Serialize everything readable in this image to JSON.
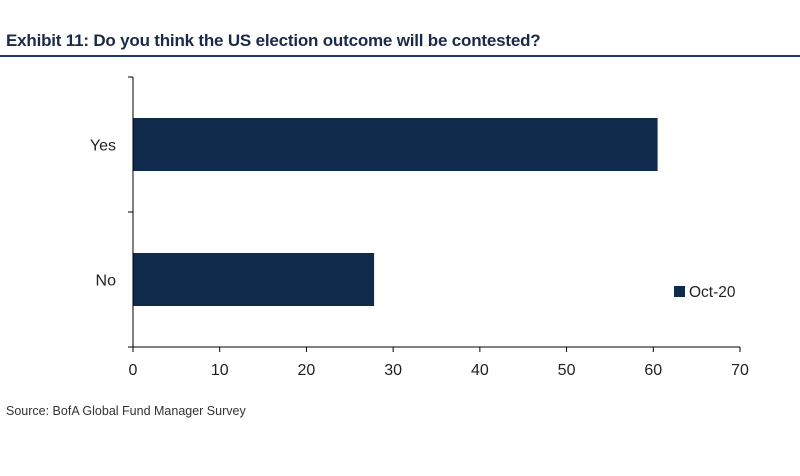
{
  "header": {
    "title": "Exhibit 11: Do you think the US election outcome will be contested?"
  },
  "footer": {
    "source": "Source: BofA Global Fund Manager Survey"
  },
  "chart_data": {
    "type": "bar",
    "orientation": "horizontal",
    "categories": [
      "Yes",
      "No"
    ],
    "series": [
      {
        "name": "Oct-20",
        "values": [
          60.5,
          27.8
        ],
        "color": "#102a4c"
      }
    ],
    "xlim": [
      0,
      70
    ],
    "xticks": [
      0,
      10,
      20,
      30,
      40,
      50,
      60,
      70
    ],
    "grid": false,
    "legend": "right"
  }
}
